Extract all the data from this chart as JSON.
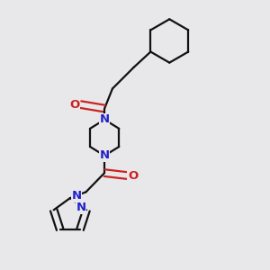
{
  "background_color": "#e8e8ea",
  "bond_color": "#111111",
  "N_color": "#2222cc",
  "O_color": "#cc2222",
  "line_width": 1.6,
  "fig_size": [
    3.0,
    3.0
  ],
  "dpi": 100,
  "xlim": [
    0.0,
    1.0
  ],
  "ylim": [
    0.0,
    1.0
  ]
}
